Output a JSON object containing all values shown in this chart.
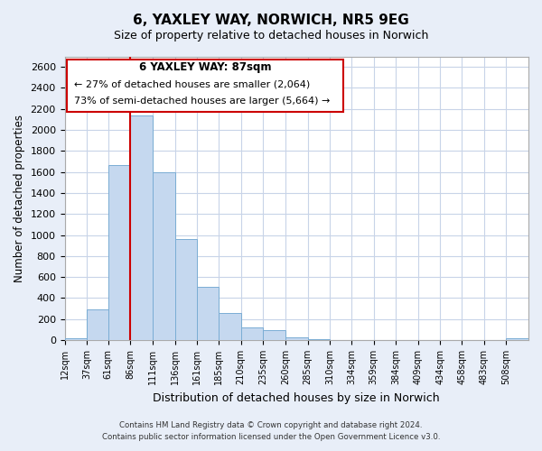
{
  "title": "6, YAXLEY WAY, NORWICH, NR5 9EG",
  "subtitle": "Size of property relative to detached houses in Norwich",
  "xlabel": "Distribution of detached houses by size in Norwich",
  "ylabel": "Number of detached properties",
  "bar_color": "#c5d8ef",
  "bar_edge_color": "#7aadd4",
  "marker_color": "#cc0000",
  "marker_value": 86,
  "categories": [
    "12sqm",
    "37sqm",
    "61sqm",
    "86sqm",
    "111sqm",
    "136sqm",
    "161sqm",
    "185sqm",
    "210sqm",
    "235sqm",
    "260sqm",
    "285sqm",
    "310sqm",
    "334sqm",
    "359sqm",
    "384sqm",
    "409sqm",
    "434sqm",
    "458sqm",
    "483sqm",
    "508sqm"
  ],
  "values": [
    20,
    295,
    1670,
    2140,
    1595,
    960,
    505,
    255,
    125,
    95,
    30,
    10,
    0,
    0,
    0,
    0,
    0,
    0,
    0,
    0,
    20
  ],
  "bin_edges": [
    12,
    37,
    61,
    86,
    111,
    136,
    161,
    185,
    210,
    235,
    260,
    285,
    310,
    334,
    359,
    384,
    409,
    434,
    458,
    483,
    508,
    533
  ],
  "ylim": [
    0,
    2700
  ],
  "yticks": [
    0,
    200,
    400,
    600,
    800,
    1000,
    1200,
    1400,
    1600,
    1800,
    2000,
    2200,
    2400,
    2600
  ],
  "annotation_title": "6 YAXLEY WAY: 87sqm",
  "annotation_line1": "← 27% of detached houses are smaller (2,064)",
  "annotation_line2": "73% of semi-detached houses are larger (5,664) →",
  "footer_line1": "Contains HM Land Registry data © Crown copyright and database right 2024.",
  "footer_line2": "Contains public sector information licensed under the Open Government Licence v3.0.",
  "background_color": "#e8eef8",
  "plot_bg_color": "#ffffff",
  "grid_color": "#c8d4e8"
}
